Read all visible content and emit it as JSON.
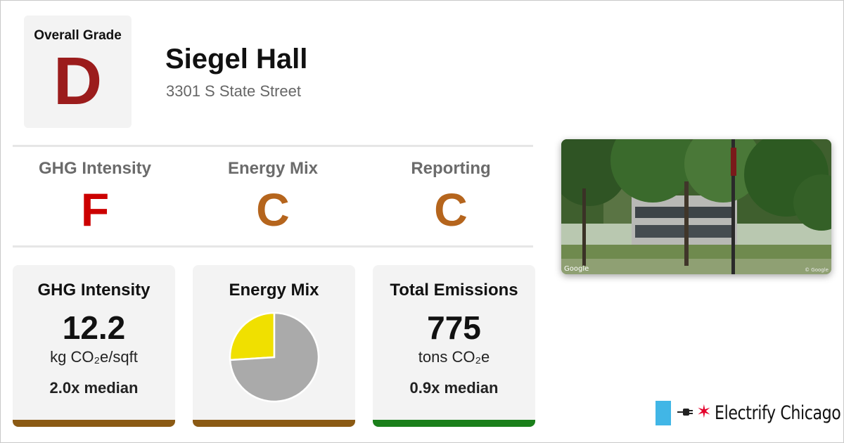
{
  "overall": {
    "label": "Overall Grade",
    "grade": "D",
    "color": "#9b1c1c"
  },
  "building": {
    "name": "Siegel Hall",
    "address": "3301 S State Street"
  },
  "sub_grades": [
    {
      "label": "GHG Intensity",
      "grade": "F",
      "color": "#cc0000"
    },
    {
      "label": "Energy Mix",
      "grade": "C",
      "color": "#b5651d"
    },
    {
      "label": "Reporting",
      "grade": "C",
      "color": "#b5651d"
    }
  ],
  "cards": {
    "ghg": {
      "title": "GHG Intensity",
      "value": "12.2",
      "unit": "kg CO₂e/sqft",
      "median": "2.0x median",
      "bar_color": "#8b5a14"
    },
    "mix": {
      "title": "Energy Mix",
      "bar_color": "#8b5a14"
    },
    "emissions": {
      "title": "Total Emissions",
      "value": "775",
      "unit": "tons CO₂e",
      "median": "0.9x median",
      "bar_color": "#1a7f1a"
    }
  },
  "chart_data": {
    "type": "pie",
    "slices": [
      {
        "name": "",
        "value": 0.26,
        "color": "#f0e000"
      },
      {
        "name": "",
        "value": 0.74,
        "color": "#aaaaaa"
      }
    ]
  },
  "photo": {
    "credit_left": "Google",
    "credit_right": "© Google"
  },
  "brand": {
    "name": "Electrify Chicago",
    "star": "✶",
    "flag_color": "#41b6e6"
  }
}
